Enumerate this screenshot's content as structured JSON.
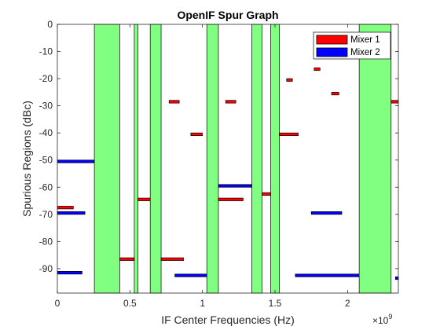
{
  "chart_data": {
    "type": "bar",
    "title": "OpenIF Spur Graph",
    "xlabel": "IF Center Frequencies (Hz)",
    "ylabel": "Spurious Regions (dBc)",
    "x_exponent_label": "×10",
    "x_exponent_power": "9",
    "x_scale": 1000000000,
    "xlim": [
      0,
      2350000000
    ],
    "ylim": [
      -99,
      0
    ],
    "x_ticks": [
      0,
      500000000,
      1000000000,
      1500000000,
      2000000000
    ],
    "x_tick_labels": [
      "0",
      "0.5",
      "1",
      "1.5",
      "2"
    ],
    "y_ticks": [
      0,
      -10,
      -20,
      -30,
      -40,
      -50,
      -60,
      -70,
      -80,
      -90
    ],
    "y_tick_labels": [
      "0",
      "-10",
      "-20",
      "-30",
      "-40",
      "-50",
      "-60",
      "-70",
      "-80",
      "-90"
    ],
    "grid": false,
    "legend_position": "top-right",
    "colors": {
      "spur_free": "#80ff80",
      "mixer1": "#ff0000",
      "mixer2": "#0000ff",
      "edge": "#000000"
    },
    "spur_free_regions": [
      [
        255000000,
        430000000
      ],
      [
        530000000,
        555000000
      ],
      [
        640000000,
        715000000
      ],
      [
        1030000000,
        1110000000
      ],
      [
        1340000000,
        1410000000
      ],
      [
        1470000000,
        1530000000
      ],
      [
        2080000000,
        2300000000
      ]
    ],
    "series": [
      {
        "name": "Mixer 1",
        "spurs": [
          {
            "x0": 0,
            "x1": 110000000,
            "y": -67.5
          },
          {
            "x0": 430000000,
            "x1": 530000000,
            "y": -86.5
          },
          {
            "x0": 555000000,
            "x1": 640000000,
            "y": -64.5
          },
          {
            "x0": 715000000,
            "x1": 870000000,
            "y": -86.5
          },
          {
            "x0": 770000000,
            "x1": 840000000,
            "y": -28.5
          },
          {
            "x0": 920000000,
            "x1": 1000000000,
            "y": -40.5
          },
          {
            "x0": 1110000000,
            "x1": 1280000000,
            "y": -64.5
          },
          {
            "x0": 1160000000,
            "x1": 1230000000,
            "y": -28.5
          },
          {
            "x0": 1410000000,
            "x1": 1470000000,
            "y": -62.5
          },
          {
            "x0": 1530000000,
            "x1": 1660000000,
            "y": -40.5
          },
          {
            "x0": 1580000000,
            "x1": 1620000000,
            "y": -20.5
          },
          {
            "x0": 1770000000,
            "x1": 1810000000,
            "y": -16.5
          },
          {
            "x0": 1890000000,
            "x1": 1940000000,
            "y": -25.5
          },
          {
            "x0": 2300000000,
            "x1": 2350000000,
            "y": -28.5
          }
        ]
      },
      {
        "name": "Mixer 2",
        "spurs": [
          {
            "x0": 0,
            "x1": 255000000,
            "y": -50.5
          },
          {
            "x0": 0,
            "x1": 190000000,
            "y": -69.5
          },
          {
            "x0": 0,
            "x1": 170000000,
            "y": -91.5
          },
          {
            "x0": 810000000,
            "x1": 1030000000,
            "y": -92.5
          },
          {
            "x0": 1110000000,
            "x1": 1340000000,
            "y": -59.5
          },
          {
            "x0": 1640000000,
            "x1": 2080000000,
            "y": -92.5
          },
          {
            "x0": 1750000000,
            "x1": 1960000000,
            "y": -69.5
          },
          {
            "x0": 2330000000,
            "x1": 2350000000,
            "y": -93.5
          }
        ]
      }
    ]
  }
}
